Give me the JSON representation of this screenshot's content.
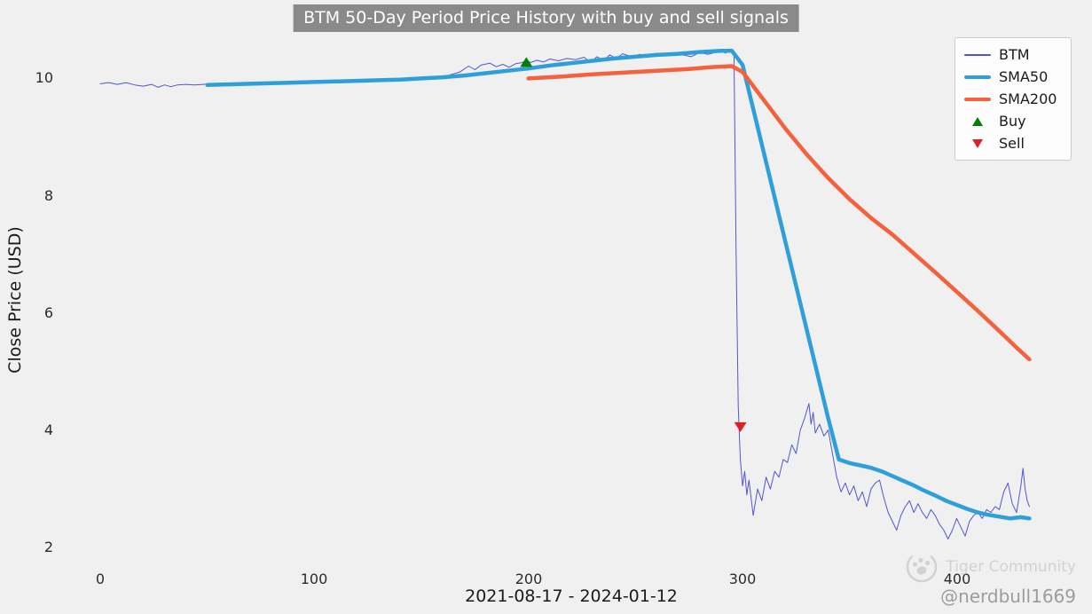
{
  "watermark": {
    "brand": "Tiger Community",
    "handle": "@nerdbull1669"
  },
  "chart_data": {
    "type": "line",
    "title": "BTM 50-Day Period Price History with buy and sell signals",
    "xlabel": "2021-08-17 - 2024-01-12",
    "ylabel": "Close Price (USD)",
    "xlim": [
      -22,
      462
    ],
    "ylim": [
      1.63,
      10.76
    ],
    "xticks": [
      0,
      100,
      200,
      300,
      400
    ],
    "yticks": [
      2,
      4,
      6,
      8,
      10
    ],
    "grid": false,
    "legend_position": "upper right",
    "background": "#f0f0f0",
    "title_bg": "#8a8a8a",
    "series": [
      {
        "name": "BTM",
        "color": "#5156cf",
        "width": 1,
        "points": [
          [
            0,
            9.88
          ],
          [
            4,
            9.9
          ],
          [
            8,
            9.87
          ],
          [
            12,
            9.9
          ],
          [
            16,
            9.86
          ],
          [
            20,
            9.84
          ],
          [
            24,
            9.87
          ],
          [
            27,
            9.82
          ],
          [
            30,
            9.86
          ],
          [
            33,
            9.83
          ],
          [
            36,
            9.86
          ],
          [
            40,
            9.87
          ],
          [
            44,
            9.86
          ],
          [
            48,
            9.87
          ],
          [
            52,
            9.88
          ],
          [
            56,
            9.87
          ],
          [
            60,
            9.89
          ],
          [
            65,
            9.88
          ],
          [
            70,
            9.9
          ],
          [
            75,
            9.89
          ],
          [
            80,
            9.91
          ],
          [
            85,
            9.9
          ],
          [
            90,
            9.92
          ],
          [
            95,
            9.92
          ],
          [
            100,
            9.93
          ],
          [
            105,
            9.93
          ],
          [
            110,
            9.94
          ],
          [
            115,
            9.94
          ],
          [
            120,
            9.95
          ],
          [
            125,
            9.95
          ],
          [
            130,
            9.96
          ],
          [
            135,
            9.96
          ],
          [
            140,
            9.97
          ],
          [
            145,
            9.97
          ],
          [
            150,
            9.98
          ],
          [
            155,
            10.0
          ],
          [
            160,
            9.98
          ],
          [
            164,
            10.04
          ],
          [
            168,
            10.08
          ],
          [
            172,
            10.18
          ],
          [
            175,
            10.12
          ],
          [
            178,
            10.2
          ],
          [
            182,
            10.23
          ],
          [
            185,
            10.17
          ],
          [
            188,
            10.21
          ],
          [
            191,
            10.16
          ],
          [
            194,
            10.22
          ],
          [
            197,
            10.24
          ],
          [
            199,
            10.27
          ],
          [
            201,
            10.24
          ],
          [
            204,
            10.28
          ],
          [
            207,
            10.25
          ],
          [
            210,
            10.3
          ],
          [
            214,
            10.27
          ],
          [
            218,
            10.31
          ],
          [
            222,
            10.29
          ],
          [
            226,
            10.33
          ],
          [
            229,
            10.24
          ],
          [
            232,
            10.34
          ],
          [
            235,
            10.27
          ],
          [
            238,
            10.37
          ],
          [
            241,
            10.31
          ],
          [
            244,
            10.39
          ],
          [
            248,
            10.34
          ],
          [
            252,
            10.38
          ],
          [
            256,
            10.33
          ],
          [
            260,
            10.4
          ],
          [
            264,
            10.36
          ],
          [
            268,
            10.41
          ],
          [
            272,
            10.37
          ],
          [
            276,
            10.34
          ],
          [
            280,
            10.41
          ],
          [
            284,
            10.38
          ],
          [
            288,
            10.42
          ],
          [
            290,
            10.45
          ],
          [
            292,
            10.4
          ],
          [
            294,
            10.47
          ],
          [
            295,
            10.44
          ],
          [
            296,
            10.42
          ],
          [
            297,
            7.0
          ],
          [
            298,
            4.4
          ],
          [
            299,
            3.5
          ],
          [
            300,
            3.05
          ],
          [
            301,
            3.3
          ],
          [
            302,
            2.9
          ],
          [
            303,
            3.15
          ],
          [
            305,
            2.55
          ],
          [
            307,
            3.0
          ],
          [
            309,
            2.8
          ],
          [
            311,
            3.2
          ],
          [
            313,
            3.0
          ],
          [
            315,
            3.3
          ],
          [
            317,
            3.2
          ],
          [
            319,
            3.5
          ],
          [
            321,
            3.45
          ],
          [
            323,
            3.75
          ],
          [
            325,
            3.6
          ],
          [
            327,
            4.0
          ],
          [
            329,
            4.2
          ],
          [
            331,
            4.45
          ],
          [
            332,
            4.1
          ],
          [
            333,
            4.3
          ],
          [
            334,
            3.95
          ],
          [
            336,
            4.1
          ],
          [
            338,
            3.9
          ],
          [
            340,
            4.0
          ],
          [
            342,
            3.6
          ],
          [
            344,
            3.2
          ],
          [
            346,
            2.95
          ],
          [
            348,
            3.1
          ],
          [
            350,
            2.9
          ],
          [
            352,
            3.05
          ],
          [
            354,
            2.8
          ],
          [
            356,
            2.95
          ],
          [
            358,
            2.7
          ],
          [
            360,
            3.0
          ],
          [
            362,
            3.1
          ],
          [
            364,
            3.15
          ],
          [
            366,
            2.85
          ],
          [
            368,
            2.6
          ],
          [
            370,
            2.45
          ],
          [
            372,
            2.3
          ],
          [
            374,
            2.55
          ],
          [
            376,
            2.7
          ],
          [
            378,
            2.8
          ],
          [
            380,
            2.6
          ],
          [
            382,
            2.75
          ],
          [
            384,
            2.6
          ],
          [
            386,
            2.5
          ],
          [
            388,
            2.65
          ],
          [
            390,
            2.55
          ],
          [
            392,
            2.4
          ],
          [
            394,
            2.3
          ],
          [
            396,
            2.15
          ],
          [
            398,
            2.3
          ],
          [
            400,
            2.5
          ],
          [
            402,
            2.35
          ],
          [
            404,
            2.2
          ],
          [
            406,
            2.45
          ],
          [
            408,
            2.55
          ],
          [
            410,
            2.6
          ],
          [
            412,
            2.5
          ],
          [
            414,
            2.65
          ],
          [
            416,
            2.6
          ],
          [
            418,
            2.7
          ],
          [
            420,
            2.65
          ],
          [
            422,
            2.95
          ],
          [
            424,
            3.1
          ],
          [
            426,
            2.75
          ],
          [
            428,
            2.6
          ],
          [
            430,
            3.05
          ],
          [
            431,
            3.35
          ],
          [
            432,
            3.0
          ],
          [
            433,
            2.8
          ],
          [
            434,
            2.7
          ]
        ]
      },
      {
        "name": "SMA50",
        "color": "#2f9fdb",
        "width": 4.5,
        "points": [
          [
            50,
            9.86
          ],
          [
            60,
            9.87
          ],
          [
            70,
            9.88
          ],
          [
            80,
            9.89
          ],
          [
            90,
            9.9
          ],
          [
            100,
            9.91
          ],
          [
            110,
            9.92
          ],
          [
            120,
            9.93
          ],
          [
            130,
            9.94
          ],
          [
            140,
            9.95
          ],
          [
            150,
            9.97
          ],
          [
            160,
            9.99
          ],
          [
            170,
            10.02
          ],
          [
            180,
            10.06
          ],
          [
            190,
            10.1
          ],
          [
            200,
            10.14
          ],
          [
            210,
            10.19
          ],
          [
            220,
            10.23
          ],
          [
            230,
            10.27
          ],
          [
            240,
            10.31
          ],
          [
            250,
            10.34
          ],
          [
            260,
            10.37
          ],
          [
            270,
            10.39
          ],
          [
            280,
            10.42
          ],
          [
            290,
            10.44
          ],
          [
            295,
            10.44
          ],
          [
            300,
            10.2
          ],
          [
            310,
            8.7
          ],
          [
            320,
            7.2
          ],
          [
            330,
            5.7
          ],
          [
            340,
            4.2
          ],
          [
            345,
            3.5
          ],
          [
            350,
            3.44
          ],
          [
            355,
            3.4
          ],
          [
            360,
            3.36
          ],
          [
            365,
            3.3
          ],
          [
            370,
            3.22
          ],
          [
            375,
            3.14
          ],
          [
            380,
            3.06
          ],
          [
            385,
            2.97
          ],
          [
            390,
            2.89
          ],
          [
            395,
            2.8
          ],
          [
            400,
            2.73
          ],
          [
            405,
            2.66
          ],
          [
            410,
            2.6
          ],
          [
            415,
            2.56
          ],
          [
            420,
            2.53
          ],
          [
            425,
            2.5
          ],
          [
            430,
            2.52
          ],
          [
            434,
            2.5
          ]
        ]
      },
      {
        "name": "SMA200",
        "color": "#f4613c",
        "width": 4.5,
        "points": [
          [
            200,
            9.97
          ],
          [
            215,
            10.0
          ],
          [
            230,
            10.04
          ],
          [
            245,
            10.07
          ],
          [
            260,
            10.1
          ],
          [
            275,
            10.13
          ],
          [
            285,
            10.16
          ],
          [
            295,
            10.18
          ],
          [
            300,
            10.08
          ],
          [
            310,
            9.6
          ],
          [
            320,
            9.12
          ],
          [
            330,
            8.68
          ],
          [
            340,
            8.28
          ],
          [
            350,
            7.92
          ],
          [
            360,
            7.6
          ],
          [
            370,
            7.32
          ],
          [
            380,
            7.0
          ],
          [
            390,
            6.68
          ],
          [
            400,
            6.35
          ],
          [
            410,
            6.02
          ],
          [
            420,
            5.68
          ],
          [
            428,
            5.4
          ],
          [
            434,
            5.2
          ]
        ]
      }
    ],
    "signals": {
      "buy": {
        "label": "Buy",
        "color": "#008000",
        "marker": "triangle-up",
        "points": [
          [
            199,
            10.25
          ]
        ]
      },
      "sell": {
        "label": "Sell",
        "color": "#dd1f26",
        "marker": "triangle-down",
        "points": [
          [
            299,
            4.05
          ]
        ]
      }
    }
  }
}
